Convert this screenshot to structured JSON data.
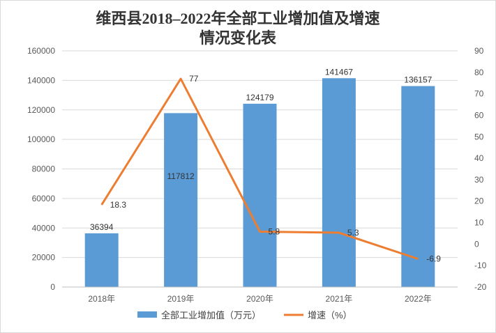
{
  "chart_data": {
    "type": "bar+line",
    "title_lines": [
      "维西县2018–2022年全部工业增加值及增速",
      "情况变化表"
    ],
    "categories": [
      "2018年",
      "2019年",
      "2020年",
      "2021年",
      "2022年"
    ],
    "series": [
      {
        "name": "全部工业增加值（万元）",
        "type": "bar",
        "axis": "left",
        "values": [
          36394,
          117812,
          124179,
          141467,
          136157
        ],
        "labels": [
          "36394",
          "117812",
          "124179",
          "141467",
          "136157"
        ],
        "color": "#5b9bd5"
      },
      {
        "name": "增速（%）",
        "type": "line",
        "axis": "right",
        "values": [
          18.3,
          77,
          5.8,
          5.3,
          -6.9
        ],
        "labels": [
          "18.3",
          "77",
          "5.8",
          "5.3",
          "-6.9"
        ],
        "color": "#ed7d31"
      }
    ],
    "y_left": {
      "min": 0,
      "max": 160000,
      "step": 20000,
      "ticks": [
        "0",
        "20000",
        "40000",
        "60000",
        "80000",
        "100000",
        "120000",
        "140000",
        "160000"
      ]
    },
    "y_right": {
      "min": -20,
      "max": 90,
      "step": 10,
      "ticks": [
        "-20",
        "-10",
        "0",
        "10",
        "20",
        "30",
        "40",
        "50",
        "60",
        "70",
        "80",
        "90"
      ]
    },
    "grid": true,
    "legend_position": "bottom"
  }
}
